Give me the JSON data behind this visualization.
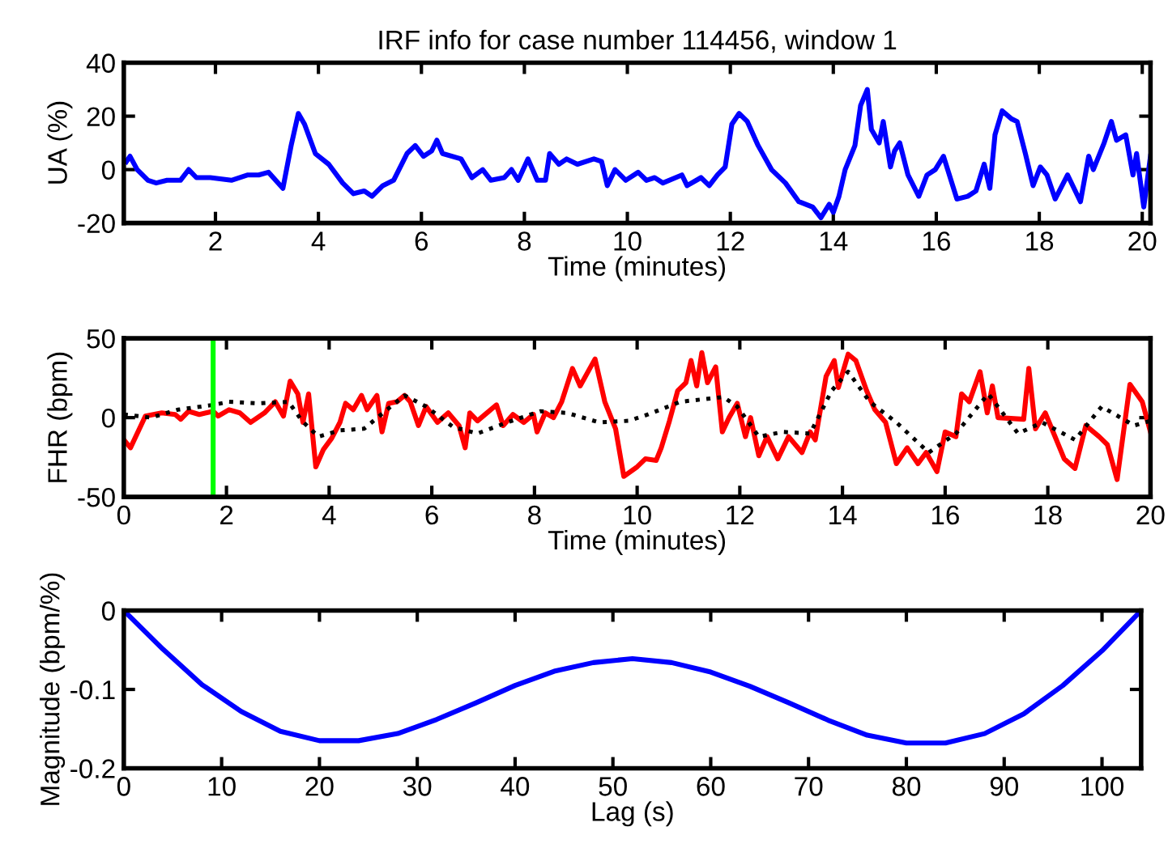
{
  "chart_data": [
    {
      "type": "line",
      "title": "IRF info for case number 114456, window 1",
      "xlabel": "Time (minutes)",
      "ylabel": "UA (%)",
      "xlim": [
        0.22,
        20.16
      ],
      "xticks": [
        2,
        4,
        6,
        8,
        10,
        12,
        14,
        16,
        18,
        20
      ],
      "ylim": [
        -20,
        40
      ],
      "yticks": [
        -20,
        0,
        20,
        40
      ],
      "grid": false,
      "legend": false,
      "series": [
        {
          "color": "#0000ff",
          "line_style": "solid",
          "x": [
            0.27,
            0.34,
            0.48,
            0.69,
            0.85,
            1.06,
            1.32,
            1.48,
            1.63,
            1.9,
            2.31,
            2.63,
            2.84,
            3.03,
            3.31,
            3.47,
            3.61,
            3.73,
            3.94,
            4.2,
            4.47,
            4.68,
            4.89,
            5.04,
            5.25,
            5.46,
            5.72,
            5.88,
            6.04,
            6.2,
            6.3,
            6.41,
            6.77,
            6.98,
            7.19,
            7.35,
            7.61,
            7.75,
            7.88,
            8.07,
            8.25,
            8.41,
            8.49,
            8.67,
            8.82,
            9.03,
            9.35,
            9.5,
            9.61,
            9.76,
            9.97,
            10.21,
            10.37,
            10.53,
            10.69,
            11.06,
            11.16,
            11.43,
            11.59,
            11.75,
            11.9,
            12.03,
            12.17,
            12.33,
            12.54,
            12.8,
            13.07,
            13.33,
            13.6,
            13.76,
            13.92,
            14.0,
            14.11,
            14.23,
            14.42,
            14.53,
            14.66,
            14.74,
            14.89,
            14.97,
            15.11,
            15.19,
            15.29,
            15.45,
            15.66,
            15.82,
            15.98,
            16.14,
            16.4,
            16.61,
            16.77,
            16.93,
            17.04,
            17.14,
            17.28,
            17.46,
            17.57,
            17.73,
            17.88,
            18.02,
            18.15,
            18.31,
            18.55,
            18.8,
            18.96,
            19.05,
            19.26,
            19.4,
            19.5,
            19.68,
            19.82,
            19.89,
            20.03,
            20.16
          ],
          "values": [
            3,
            5,
            0,
            -4,
            -5,
            -4,
            -4,
            0,
            -3,
            -3,
            -4,
            -2,
            -2,
            -1,
            -7,
            9,
            21,
            17,
            6,
            2,
            -5,
            -9,
            -8,
            -10,
            -6,
            -4,
            6,
            9,
            5,
            7,
            11,
            6,
            4,
            -3,
            0,
            -4,
            -3,
            0,
            -4,
            4,
            -4,
            -4,
            6,
            2,
            4,
            2,
            4,
            3,
            -6,
            0,
            -4,
            -1,
            -4,
            -3,
            -5,
            -2,
            -6,
            -3,
            -6,
            -2,
            1,
            17,
            21,
            18,
            9,
            0,
            -5,
            -12,
            -14,
            -18,
            -13,
            -16,
            -10,
            0,
            9,
            24,
            30,
            15,
            10,
            18,
            1,
            7,
            10,
            -2,
            -10,
            -2,
            0,
            5,
            -11,
            -10,
            -8,
            2,
            -7,
            13,
            22,
            19,
            18,
            6,
            -6,
            1,
            -2,
            -11,
            -2,
            -12,
            5,
            0,
            10,
            18,
            11,
            13,
            -2,
            6,
            -14,
            5
          ]
        }
      ]
    },
    {
      "type": "line",
      "xlabel": "Time (minutes)",
      "ylabel": "FHR (bpm)",
      "xlim": [
        0,
        20
      ],
      "xticks": [
        0,
        2,
        4,
        6,
        8,
        10,
        12,
        14,
        16,
        18,
        20
      ],
      "ylim": [
        -50,
        50
      ],
      "yticks": [
        -50,
        0,
        50
      ],
      "grid": false,
      "legend": false,
      "ref_lines": [
        {
          "axis": "x",
          "value": 1.74,
          "color": "#00ff00",
          "line_style": "solid"
        }
      ],
      "series": [
        {
          "color": "#ff0000",
          "line_style": "solid",
          "x": [
            0,
            0.13,
            0.42,
            0.74,
            1.0,
            1.11,
            1.26,
            1.47,
            1.74,
            1.84,
            2.05,
            2.26,
            2.47,
            2.74,
            2.95,
            3.11,
            3.24,
            3.39,
            3.49,
            3.6,
            3.74,
            3.89,
            4.05,
            4.21,
            4.32,
            4.47,
            4.63,
            4.74,
            4.93,
            5.03,
            5.16,
            5.32,
            5.47,
            5.58,
            5.74,
            5.89,
            6.11,
            6.32,
            6.53,
            6.65,
            6.74,
            6.89,
            7.11,
            7.26,
            7.39,
            7.58,
            7.79,
            7.98,
            8.05,
            8.21,
            8.37,
            8.53,
            8.74,
            8.89,
            9.18,
            9.37,
            9.58,
            9.74,
            10.0,
            10.16,
            10.37,
            10.47,
            10.63,
            10.79,
            10.95,
            11.05,
            11.16,
            11.26,
            11.37,
            11.53,
            11.66,
            11.79,
            11.95,
            12.11,
            12.21,
            12.37,
            12.53,
            12.74,
            12.95,
            13.21,
            13.37,
            13.47,
            13.68,
            13.84,
            13.92,
            14.11,
            14.26,
            14.47,
            14.63,
            14.84,
            15.05,
            15.26,
            15.47,
            15.63,
            15.84,
            16.0,
            16.21,
            16.32,
            16.47,
            16.68,
            16.82,
            16.92,
            17.03,
            17.53,
            17.63,
            17.76,
            17.95,
            18.32,
            18.53,
            18.74,
            19.0,
            19.16,
            19.35,
            19.6,
            19.84,
            20.0
          ],
          "values": [
            -14,
            -19,
            1,
            3,
            2,
            -1,
            4,
            2,
            4,
            1,
            5,
            3,
            -3,
            3,
            10,
            1,
            23,
            15,
            -3,
            15,
            -31,
            -20,
            -13,
            -3,
            9,
            5,
            14,
            5,
            14,
            -9,
            9,
            10,
            14,
            10,
            -5,
            7,
            -3,
            3,
            -5,
            -19,
            3,
            -2,
            4,
            8,
            -5,
            2,
            -3,
            2,
            -9,
            3,
            0,
            10,
            31,
            20,
            37,
            10,
            -7,
            -37,
            -31,
            -26,
            -27,
            -19,
            -2,
            17,
            22,
            36,
            20,
            41,
            22,
            32,
            -9,
            0,
            9,
            -12,
            0,
            -24,
            -12,
            -26,
            -12,
            -22,
            -9,
            -14,
            26,
            36,
            19,
            40,
            36,
            17,
            5,
            -3,
            -29,
            -19,
            -29,
            -22,
            -34,
            -9,
            -12,
            15,
            10,
            29,
            3,
            20,
            0,
            -1,
            31,
            -7,
            3,
            -26,
            -32,
            -5,
            -12,
            -17,
            -39,
            21,
            10,
            -9
          ]
        },
        {
          "color": "#000000",
          "line_style": "dotted",
          "x": [
            0,
            0.53,
            1.05,
            1.74,
            2.05,
            2.63,
            3.21,
            3.47,
            3.79,
            4.21,
            4.68,
            5.05,
            5.47,
            5.89,
            6.42,
            6.89,
            7.47,
            8.11,
            8.63,
            9.26,
            9.84,
            10.21,
            10.84,
            11.68,
            11.95,
            12.37,
            12.84,
            13.37,
            13.79,
            14.11,
            14.53,
            15.05,
            15.68,
            16.21,
            16.84,
            17.42,
            17.89,
            18.53,
            19.05,
            19.68,
            20.0
          ],
          "values": [
            2,
            0,
            5,
            8,
            10,
            9,
            10,
            -2,
            -12,
            -8,
            -7,
            3,
            14,
            7,
            -6,
            -10,
            -3,
            4,
            3,
            -3,
            -2,
            2,
            10,
            13,
            7,
            -12,
            -9,
            -10,
            17,
            29,
            10,
            -3,
            -22,
            -10,
            15,
            -10,
            -3,
            -14,
            7,
            -5,
            -2
          ]
        }
      ]
    },
    {
      "type": "line",
      "xlabel": "Lag (s)",
      "ylabel": "Magnitude (bpm/%)",
      "xlim": [
        0,
        104
      ],
      "xticks": [
        0,
        10,
        20,
        30,
        40,
        50,
        60,
        70,
        80,
        90,
        100
      ],
      "ylim": [
        -0.2,
        0
      ],
      "yticks": [
        -0.2,
        -0.1,
        0
      ],
      "grid": false,
      "legend": false,
      "x": [
        0,
        4,
        8,
        12,
        16,
        20,
        24,
        28,
        32,
        36,
        40,
        44,
        48,
        52,
        56,
        60,
        64,
        68,
        72,
        76,
        80,
        84,
        88,
        92,
        96,
        100,
        104
      ],
      "series": [
        {
          "color": "#0000ff",
          "line_style": "solid",
          "values": [
            0,
            -0.049,
            -0.094,
            -0.128,
            -0.153,
            -0.165,
            -0.165,
            -0.156,
            -0.138,
            -0.117,
            -0.095,
            -0.077,
            -0.066,
            -0.061,
            -0.066,
            -0.078,
            -0.096,
            -0.117,
            -0.139,
            -0.158,
            -0.168,
            -0.168,
            -0.156,
            -0.131,
            -0.095,
            -0.051,
            0
          ]
        }
      ]
    }
  ]
}
